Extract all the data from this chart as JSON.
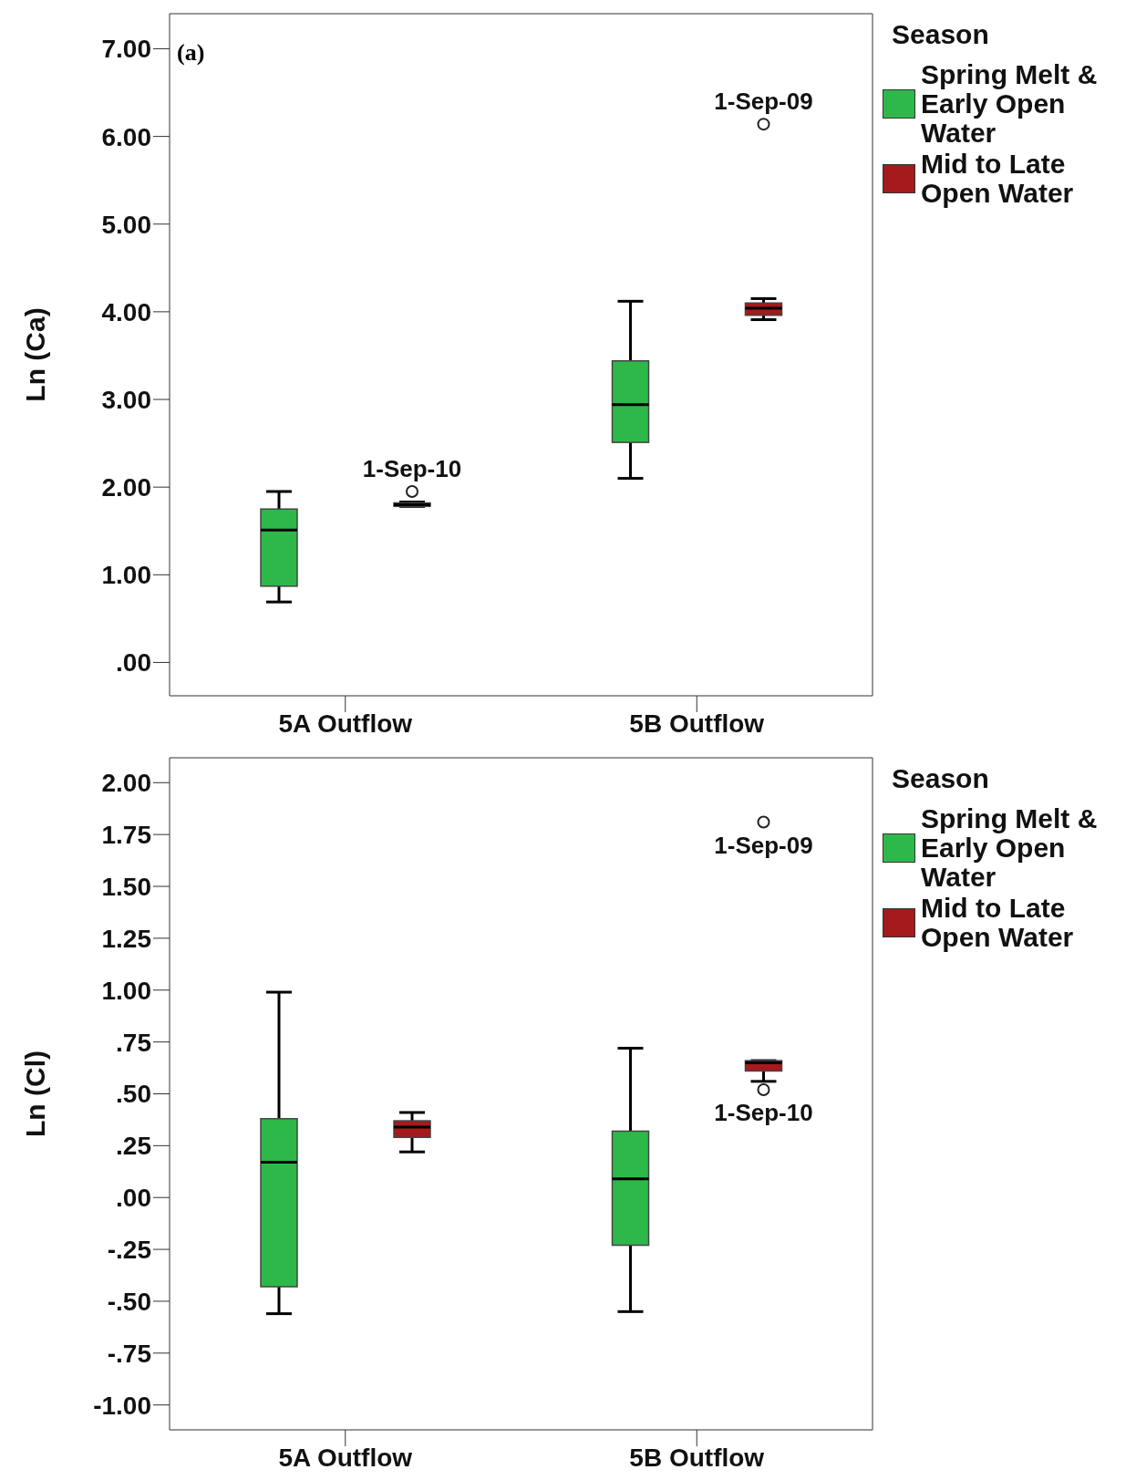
{
  "chart_data": [
    {
      "type": "box",
      "ylabel": "Ln (Ca)",
      "legend_title": "Season",
      "legend": "top right",
      "categories": [
        "5A Outflow",
        "5B Outflow"
      ],
      "ylim": [
        -0.38,
        7.4
      ],
      "yticks": [
        {
          "value": 0,
          "label": ".00"
        },
        {
          "value": 1,
          "label": "1.00"
        },
        {
          "value": 2,
          "label": "2.00"
        },
        {
          "value": 3,
          "label": "3.00"
        },
        {
          "value": 4,
          "label": "4.00"
        },
        {
          "value": 5,
          "label": "5.00"
        },
        {
          "value": 6,
          "label": "6.00"
        },
        {
          "value": 7,
          "label": "7.00"
        }
      ],
      "series": [
        {
          "name": "Spring Melt & Early Open Water",
          "color": "#2eb84a",
          "boxes": [
            {
              "low": 0.69,
              "q1": 0.87,
              "median": 1.51,
              "q3": 1.75,
              "high": 1.95
            },
            {
              "low": 2.1,
              "q1": 2.51,
              "median": 2.94,
              "q3": 3.44,
              "high": 4.12
            }
          ]
        },
        {
          "name": "Mid to Late Open Water",
          "color": "#a51a1c",
          "boxes": [
            {
              "low": 1.78,
              "q1": 1.78,
              "median": 1.8,
              "q3": 1.82,
              "high": 1.83,
              "outliers": [
                1.95
              ]
            },
            {
              "low": 3.91,
              "q1": 3.96,
              "median": 4.04,
              "q3": 4.1,
              "high": 4.15,
              "outliers": [
                6.14
              ]
            }
          ]
        }
      ],
      "title": "(a)",
      "annotations": [
        "1-Sep-10",
        "1-Sep-09"
      ]
    },
    {
      "type": "box",
      "ylabel": "Ln (Cl)",
      "legend_title": "Season",
      "legend": "top right",
      "categories": [
        "5A Outflow",
        "5B Outflow"
      ],
      "ylim": [
        -1.12,
        2.12
      ],
      "yticks": [
        {
          "value": -1,
          "label": "-1.00"
        },
        {
          "value": -0.75,
          "label": "-.75"
        },
        {
          "value": -0.5,
          "label": "-.50"
        },
        {
          "value": -0.25,
          "label": "-.25"
        },
        {
          "value": 0,
          "label": ".00"
        },
        {
          "value": 0.25,
          "label": ".25"
        },
        {
          "value": 0.5,
          "label": ".50"
        },
        {
          "value": 0.75,
          "label": ".75"
        },
        {
          "value": 1,
          "label": "1.00"
        },
        {
          "value": 1.25,
          "label": "1.25"
        },
        {
          "value": 1.5,
          "label": "1.50"
        },
        {
          "value": 1.75,
          "label": "1.75"
        },
        {
          "value": 2,
          "label": "2.00"
        }
      ],
      "series": [
        {
          "name": "Spring Melt & Early Open Water",
          "color": "#2eb84a",
          "boxes": [
            {
              "low": -0.56,
              "q1": -0.43,
              "median": 0.17,
              "q3": 0.38,
              "high": 0.99
            },
            {
              "low": -0.55,
              "q1": -0.23,
              "median": 0.09,
              "q3": 0.32,
              "high": 0.72
            }
          ]
        },
        {
          "name": "Mid to Late Open Water",
          "color": "#a51a1c",
          "boxes": [
            {
              "low": 0.22,
              "q1": 0.29,
              "median": 0.34,
              "q3": 0.37,
              "high": 0.41
            },
            {
              "low": 0.56,
              "q1": 0.61,
              "median": 0.65,
              "q3": 0.66,
              "high": 0.66,
              "outliers": [
                0.52,
                1.81
              ]
            }
          ]
        }
      ],
      "annotations": [
        "1-Sep-10",
        "1-Sep-09"
      ]
    }
  ]
}
